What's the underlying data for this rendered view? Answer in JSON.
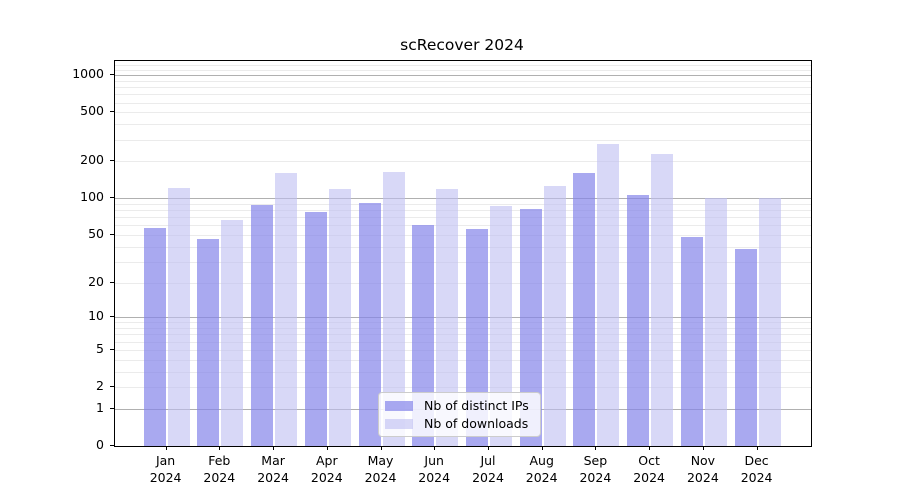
{
  "title": "scRecover 2024",
  "chart_data": {
    "type": "bar",
    "title": "scRecover 2024",
    "categories": [
      "Jan 2024",
      "Feb 2024",
      "Mar 2024",
      "Apr 2024",
      "May 2024",
      "Jun 2024",
      "Jul 2024",
      "Aug 2024",
      "Sep 2024",
      "Oct 2024",
      "Nov 2024",
      "Dec 2024"
    ],
    "series": [
      {
        "name": "Nb of distinct IPs",
        "color": "#a8a8f0",
        "fill": "rgba(132,132,234,0.7)",
        "values": [
          57,
          46,
          88,
          77,
          92,
          60,
          56,
          82,
          161,
          106,
          48,
          38
        ]
      },
      {
        "name": "Nb of downloads",
        "color": "#d8d8f7",
        "fill": "rgba(190,190,242,0.6)",
        "values": [
          122,
          66,
          162,
          118,
          164,
          119,
          86,
          125,
          277,
          230,
          101,
          100
        ]
      }
    ],
    "xlabel": "",
    "ylabel": "",
    "yscale": "log1p",
    "yticks": [
      0,
      1,
      2,
      5,
      10,
      20,
      50,
      100,
      200,
      500,
      1000
    ],
    "ylim": [
      0,
      1300
    ],
    "grid": "horizontal-log-minor-and-major",
    "legend_position": "inside-bottom-center"
  },
  "legend": {
    "items": [
      {
        "label": "Nb of distinct IPs",
        "swatch_color": "rgba(132,132,234,0.7)"
      },
      {
        "label": "Nb of downloads",
        "swatch_color": "rgba(190,190,242,0.6)"
      }
    ]
  },
  "colors": {
    "background": "#ffffff",
    "axis": "#000000",
    "grid_minor": "#ebebeb",
    "grid_major": "#b0b0b0",
    "bar_distinct_ips": "#a8a8f0",
    "bar_downloads": "#d8d8f7",
    "legend_border": "#cccccc"
  }
}
